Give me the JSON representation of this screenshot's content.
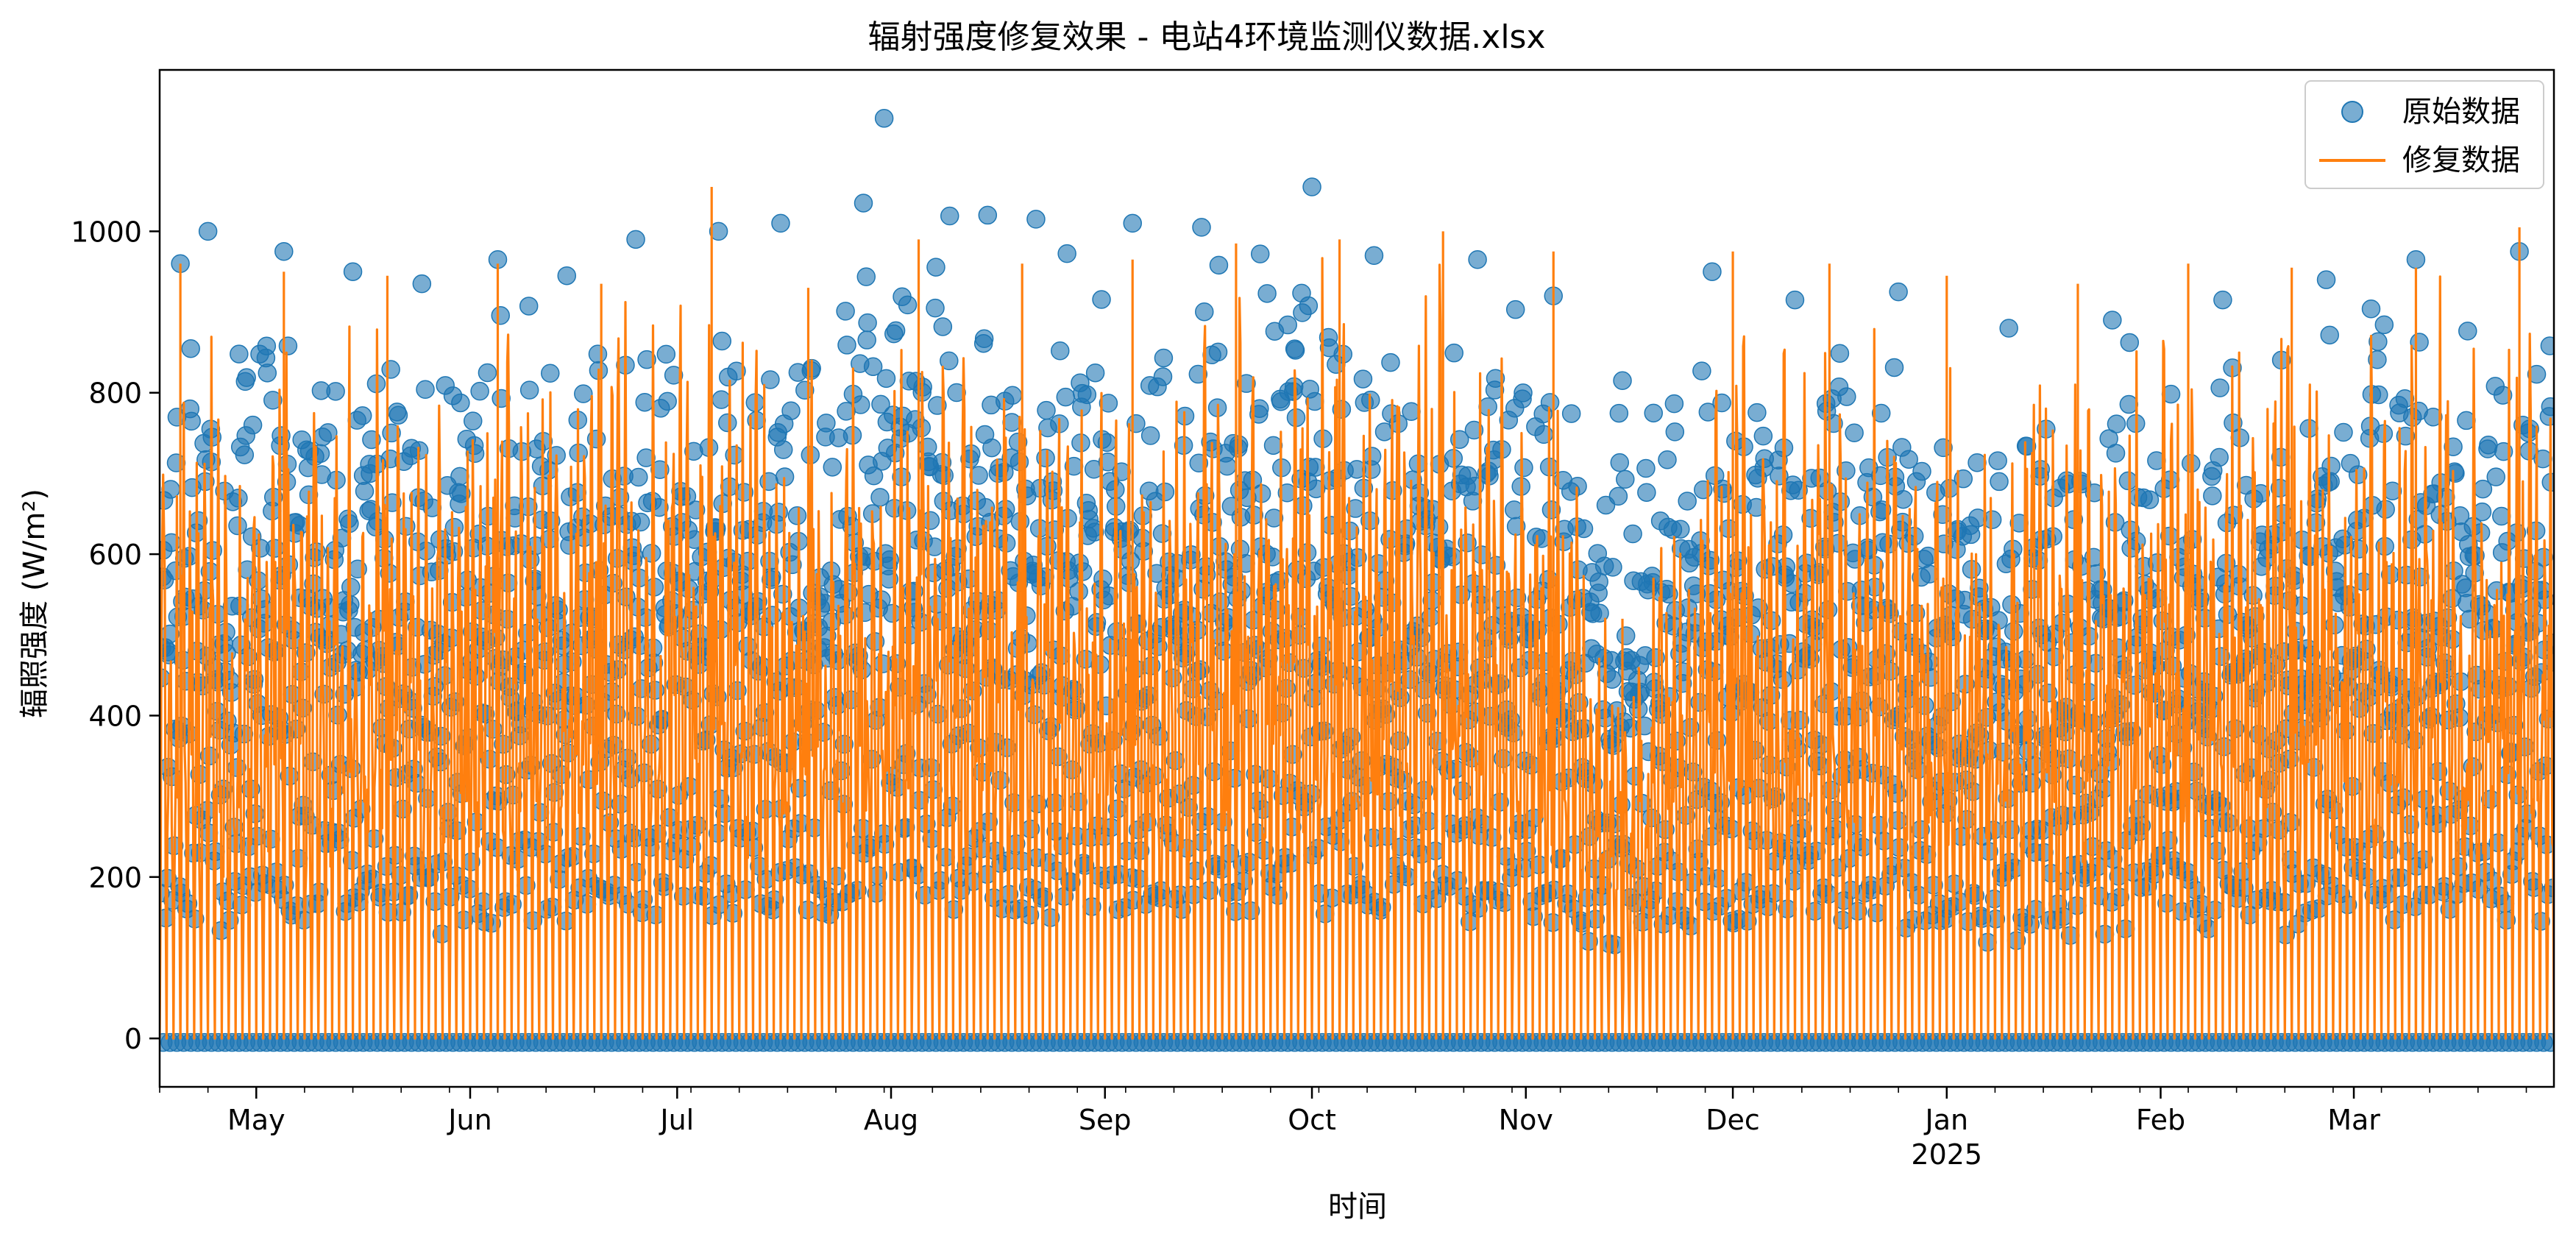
{
  "chart_data": {
    "type": "line",
    "title": "辐射强度修复效果 - 电站4环境监测仪数据.xlsx",
    "xlabel": "时间",
    "ylabel": "辐照强度 (W/m²)",
    "x_range": [
      "2024-04-17",
      "2025-03-30"
    ],
    "ylim": [
      -60,
      1200
    ],
    "y_ticks": [
      0,
      200,
      400,
      600,
      800,
      1000
    ],
    "x_ticks": [
      {
        "date": "2024-05-01",
        "label": "May",
        "sublabel": ""
      },
      {
        "date": "2024-06-01",
        "label": "Jun",
        "sublabel": ""
      },
      {
        "date": "2024-07-01",
        "label": "Jul",
        "sublabel": ""
      },
      {
        "date": "2024-08-01",
        "label": "Aug",
        "sublabel": ""
      },
      {
        "date": "2024-09-01",
        "label": "Sep",
        "sublabel": ""
      },
      {
        "date": "2024-10-01",
        "label": "Oct",
        "sublabel": ""
      },
      {
        "date": "2024-11-01",
        "label": "Nov",
        "sublabel": ""
      },
      {
        "date": "2024-12-01",
        "label": "Dec",
        "sublabel": ""
      },
      {
        "date": "2025-01-01",
        "label": "Jan",
        "sublabel": "2025"
      },
      {
        "date": "2025-02-01",
        "label": "Feb",
        "sublabel": ""
      },
      {
        "date": "2025-03-01",
        "label": "Mar",
        "sublabel": ""
      }
    ],
    "grid": false,
    "legend_position": "top-right",
    "series": [
      {
        "name": "原始数据",
        "style": "scatter",
        "color": "#1f77b4",
        "baseline": -5,
        "daily_peaks": [
          {
            "date": "2024-04-20",
            "value": 960
          },
          {
            "date": "2024-04-24",
            "value": 1000
          },
          {
            "date": "2024-05-05",
            "value": 975
          },
          {
            "date": "2024-05-15",
            "value": 950
          },
          {
            "date": "2024-05-25",
            "value": 935
          },
          {
            "date": "2024-06-05",
            "value": 965
          },
          {
            "date": "2024-06-15",
            "value": 945
          },
          {
            "date": "2024-06-25",
            "value": 990
          },
          {
            "date": "2024-07-07",
            "value": 1000
          },
          {
            "date": "2024-07-16",
            "value": 1010
          },
          {
            "date": "2024-07-28",
            "value": 1035
          },
          {
            "date": "2024-07-31",
            "value": 1140
          },
          {
            "date": "2024-08-15",
            "value": 1020
          },
          {
            "date": "2024-08-22",
            "value": 1015
          },
          {
            "date": "2024-09-05",
            "value": 1010
          },
          {
            "date": "2024-09-15",
            "value": 1005
          },
          {
            "date": "2024-10-01",
            "value": 1055
          },
          {
            "date": "2024-10-10",
            "value": 970
          },
          {
            "date": "2024-10-25",
            "value": 965
          },
          {
            "date": "2024-11-05",
            "value": 920
          },
          {
            "date": "2024-11-15",
            "value": 815
          },
          {
            "date": "2024-11-28",
            "value": 950
          },
          {
            "date": "2024-12-10",
            "value": 915
          },
          {
            "date": "2024-12-25",
            "value": 925
          },
          {
            "date": "2025-01-10",
            "value": 880
          },
          {
            "date": "2025-01-25",
            "value": 890
          },
          {
            "date": "2025-02-10",
            "value": 915
          },
          {
            "date": "2025-02-25",
            "value": 940
          },
          {
            "date": "2025-03-10",
            "value": 965
          },
          {
            "date": "2025-03-25",
            "value": 975
          }
        ]
      },
      {
        "name": "修复数据",
        "style": "line",
        "color": "#ff7f0e",
        "daily_peaks": [
          {
            "date": "2024-04-20",
            "value": 960
          },
          {
            "date": "2024-05-05",
            "value": 950
          },
          {
            "date": "2024-05-20",
            "value": 945
          },
          {
            "date": "2024-06-05",
            "value": 960
          },
          {
            "date": "2024-06-20",
            "value": 935
          },
          {
            "date": "2024-07-06",
            "value": 1055
          },
          {
            "date": "2024-07-20",
            "value": 930
          },
          {
            "date": "2024-08-05",
            "value": 990
          },
          {
            "date": "2024-08-20",
            "value": 960
          },
          {
            "date": "2024-09-05",
            "value": 965
          },
          {
            "date": "2024-09-20",
            "value": 985
          },
          {
            "date": "2024-10-05",
            "value": 990
          },
          {
            "date": "2024-10-20",
            "value": 1000
          },
          {
            "date": "2024-11-05",
            "value": 975
          },
          {
            "date": "2024-11-15",
            "value": 520
          },
          {
            "date": "2024-12-01",
            "value": 975
          },
          {
            "date": "2024-12-15",
            "value": 960
          },
          {
            "date": "2025-01-01",
            "value": 945
          },
          {
            "date": "2025-01-20",
            "value": 935
          },
          {
            "date": "2025-02-05",
            "value": 960
          },
          {
            "date": "2025-02-20",
            "value": 955
          },
          {
            "date": "2025-03-10",
            "value": 955
          },
          {
            "date": "2025-03-25",
            "value": 1005
          }
        ]
      }
    ]
  }
}
